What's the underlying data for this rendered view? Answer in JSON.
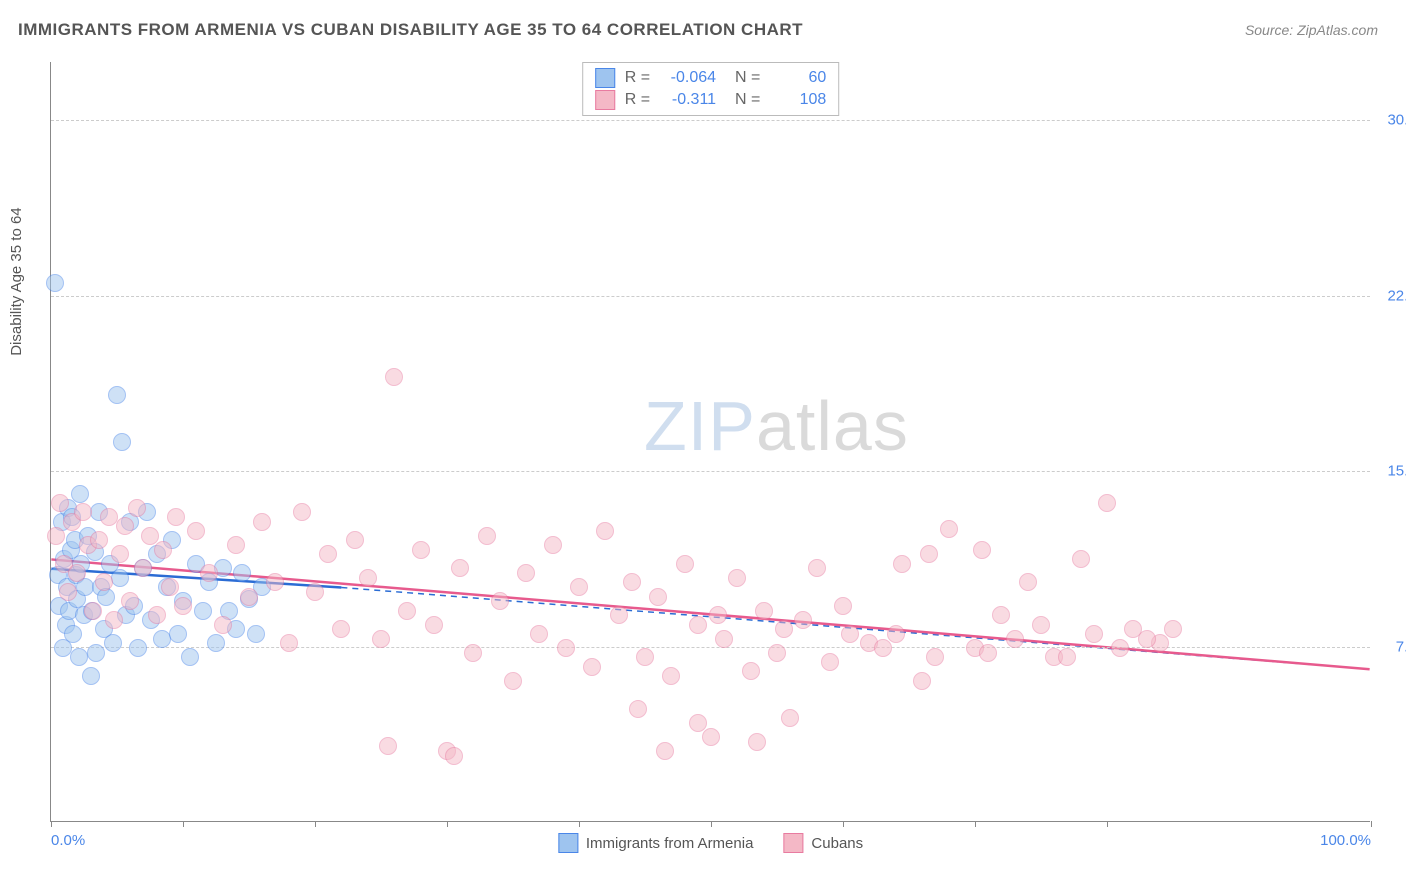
{
  "title": "IMMIGRANTS FROM ARMENIA VS CUBAN DISABILITY AGE 35 TO 64 CORRELATION CHART",
  "source": "Source: ZipAtlas.com",
  "ylabel": "Disability Age 35 to 64",
  "watermark": {
    "part1": "ZIP",
    "part2": "atlas"
  },
  "chart": {
    "type": "scatter",
    "xlim": [
      0,
      100
    ],
    "ylim": [
      0,
      32.5
    ],
    "x_ticks": [
      0,
      10,
      20,
      30,
      40,
      50,
      60,
      70,
      80,
      100
    ],
    "x_tick_labels": {
      "0": "0.0%",
      "100": "100.0%"
    },
    "y_gridlines": [
      7.5,
      15.0,
      22.5,
      30.0
    ],
    "y_tick_labels": {
      "7.5": "7.5%",
      "15.0": "15.0%",
      "22.5": "22.5%",
      "30.0": "30.0%"
    },
    "background_color": "#ffffff",
    "grid_color": "#cccccc",
    "axis_color": "#888888",
    "tick_label_color": "#4a86e8",
    "marker_radius": 9,
    "marker_opacity": 0.5,
    "series": [
      {
        "name": "Immigrants from Armenia",
        "fill_color": "#9ec4ef",
        "stroke_color": "#4a86e8",
        "line_color": "#2b6cd4",
        "R": "-0.064",
        "N": "60",
        "trend": {
          "x1": 0,
          "y1": 10.8,
          "x2": 22,
          "y2": 10.0,
          "solid_until_x": 22,
          "dash_to_x": 100,
          "dash_y2": 6.5
        },
        "points": [
          [
            0.3,
            23.0
          ],
          [
            0.5,
            10.5
          ],
          [
            0.6,
            9.2
          ],
          [
            0.8,
            12.8
          ],
          [
            0.9,
            7.4
          ],
          [
            1.0,
            11.2
          ],
          [
            1.1,
            8.4
          ],
          [
            1.2,
            10.0
          ],
          [
            1.3,
            13.4
          ],
          [
            1.4,
            9.0
          ],
          [
            1.5,
            11.6
          ],
          [
            1.6,
            13.0
          ],
          [
            1.7,
            8.0
          ],
          [
            1.8,
            12.0
          ],
          [
            1.9,
            10.5
          ],
          [
            2.0,
            9.5
          ],
          [
            2.1,
            7.0
          ],
          [
            2.2,
            14.0
          ],
          [
            2.3,
            11.0
          ],
          [
            2.5,
            8.8
          ],
          [
            2.6,
            10.0
          ],
          [
            2.8,
            12.2
          ],
          [
            3.0,
            6.2
          ],
          [
            3.1,
            9.0
          ],
          [
            3.3,
            11.5
          ],
          [
            3.4,
            7.2
          ],
          [
            3.6,
            13.2
          ],
          [
            3.8,
            10.0
          ],
          [
            4.0,
            8.2
          ],
          [
            4.2,
            9.6
          ],
          [
            4.5,
            11.0
          ],
          [
            4.7,
            7.6
          ],
          [
            5.0,
            18.2
          ],
          [
            5.2,
            10.4
          ],
          [
            5.4,
            16.2
          ],
          [
            5.7,
            8.8
          ],
          [
            6.0,
            12.8
          ],
          [
            6.3,
            9.2
          ],
          [
            6.6,
            7.4
          ],
          [
            7.0,
            10.8
          ],
          [
            7.3,
            13.2
          ],
          [
            7.6,
            8.6
          ],
          [
            8.0,
            11.4
          ],
          [
            8.4,
            7.8
          ],
          [
            8.8,
            10.0
          ],
          [
            9.2,
            12.0
          ],
          [
            9.6,
            8.0
          ],
          [
            10.0,
            9.4
          ],
          [
            10.5,
            7.0
          ],
          [
            11.0,
            11.0
          ],
          [
            11.5,
            9.0
          ],
          [
            12.0,
            10.2
          ],
          [
            12.5,
            7.6
          ],
          [
            13.0,
            10.8
          ],
          [
            13.5,
            9.0
          ],
          [
            14.0,
            8.2
          ],
          [
            14.5,
            10.6
          ],
          [
            15.0,
            9.5
          ],
          [
            15.5,
            8.0
          ],
          [
            16.0,
            10.0
          ]
        ]
      },
      {
        "name": "Cubans",
        "fill_color": "#f4b8c6",
        "stroke_color": "#e87ba0",
        "line_color": "#e75a8d",
        "R": "-0.311",
        "N": "108",
        "trend": {
          "x1": 0,
          "y1": 11.2,
          "x2": 100,
          "y2": 6.5
        },
        "points": [
          [
            0.4,
            12.2
          ],
          [
            0.7,
            13.6
          ],
          [
            1.0,
            11.0
          ],
          [
            1.3,
            9.8
          ],
          [
            1.6,
            12.8
          ],
          [
            2.0,
            10.6
          ],
          [
            2.4,
            13.2
          ],
          [
            2.8,
            11.8
          ],
          [
            3.2,
            9.0
          ],
          [
            3.6,
            12.0
          ],
          [
            4.0,
            10.2
          ],
          [
            4.4,
            13.0
          ],
          [
            4.8,
            8.6
          ],
          [
            5.2,
            11.4
          ],
          [
            5.6,
            12.6
          ],
          [
            6.0,
            9.4
          ],
          [
            6.5,
            13.4
          ],
          [
            7.0,
            10.8
          ],
          [
            7.5,
            12.2
          ],
          [
            8.0,
            8.8
          ],
          [
            8.5,
            11.6
          ],
          [
            9.0,
            10.0
          ],
          [
            9.5,
            13.0
          ],
          [
            10.0,
            9.2
          ],
          [
            11.0,
            12.4
          ],
          [
            12.0,
            10.6
          ],
          [
            13.0,
            8.4
          ],
          [
            14.0,
            11.8
          ],
          [
            15.0,
            9.6
          ],
          [
            16.0,
            12.8
          ],
          [
            17.0,
            10.2
          ],
          [
            18.0,
            7.6
          ],
          [
            19.0,
            13.2
          ],
          [
            20.0,
            9.8
          ],
          [
            21.0,
            11.4
          ],
          [
            22.0,
            8.2
          ],
          [
            23.0,
            12.0
          ],
          [
            24.0,
            10.4
          ],
          [
            25.0,
            7.8
          ],
          [
            26.0,
            19.0
          ],
          [
            27.0,
            9.0
          ],
          [
            28.0,
            11.6
          ],
          [
            29.0,
            8.4
          ],
          [
            30.0,
            3.0
          ],
          [
            31.0,
            10.8
          ],
          [
            32.0,
            7.2
          ],
          [
            33.0,
            12.2
          ],
          [
            34.0,
            9.4
          ],
          [
            35.0,
            6.0
          ],
          [
            36.0,
            10.6
          ],
          [
            37.0,
            8.0
          ],
          [
            38.0,
            11.8
          ],
          [
            39.0,
            7.4
          ],
          [
            40.0,
            10.0
          ],
          [
            41.0,
            6.6
          ],
          [
            42.0,
            12.4
          ],
          [
            43.0,
            8.8
          ],
          [
            44.0,
            10.2
          ],
          [
            45.0,
            7.0
          ],
          [
            46.0,
            9.6
          ],
          [
            47.0,
            6.2
          ],
          [
            48.0,
            11.0
          ],
          [
            49.0,
            8.4
          ],
          [
            50.0,
            3.6
          ],
          [
            51.0,
            7.8
          ],
          [
            52.0,
            10.4
          ],
          [
            53.0,
            6.4
          ],
          [
            54.0,
            9.0
          ],
          [
            55.0,
            7.2
          ],
          [
            56.0,
            4.4
          ],
          [
            57.0,
            8.6
          ],
          [
            58.0,
            10.8
          ],
          [
            59.0,
            6.8
          ],
          [
            60.0,
            9.2
          ],
          [
            62.0,
            7.6
          ],
          [
            64.0,
            8.0
          ],
          [
            66.0,
            6.0
          ],
          [
            68.0,
            12.5
          ],
          [
            70.0,
            7.4
          ],
          [
            72.0,
            8.8
          ],
          [
            74.0,
            10.2
          ],
          [
            76.0,
            7.0
          ],
          [
            78.0,
            11.2
          ],
          [
            80.0,
            13.6
          ],
          [
            82.0,
            8.2
          ],
          [
            84.0,
            7.6
          ],
          [
            25.5,
            3.2
          ],
          [
            30.5,
            2.8
          ],
          [
            44.5,
            4.8
          ],
          [
            49.0,
            4.2
          ],
          [
            53.5,
            3.4
          ],
          [
            46.5,
            3.0
          ],
          [
            64.5,
            11.0
          ],
          [
            66.5,
            11.4
          ],
          [
            70.5,
            11.6
          ],
          [
            50.5,
            8.8
          ],
          [
            55.5,
            8.2
          ],
          [
            60.5,
            8.0
          ],
          [
            63.0,
            7.4
          ],
          [
            67.0,
            7.0
          ],
          [
            71.0,
            7.2
          ],
          [
            73.0,
            7.8
          ],
          [
            75.0,
            8.4
          ],
          [
            77.0,
            7.0
          ],
          [
            79.0,
            8.0
          ],
          [
            81.0,
            7.4
          ],
          [
            83.0,
            7.8
          ],
          [
            85.0,
            8.2
          ]
        ]
      }
    ]
  },
  "bottom_legend": [
    {
      "label": "Immigrants from Armenia",
      "fill": "#9ec4ef",
      "stroke": "#4a86e8"
    },
    {
      "label": "Cubans",
      "fill": "#f4b8c6",
      "stroke": "#e87ba0"
    }
  ]
}
